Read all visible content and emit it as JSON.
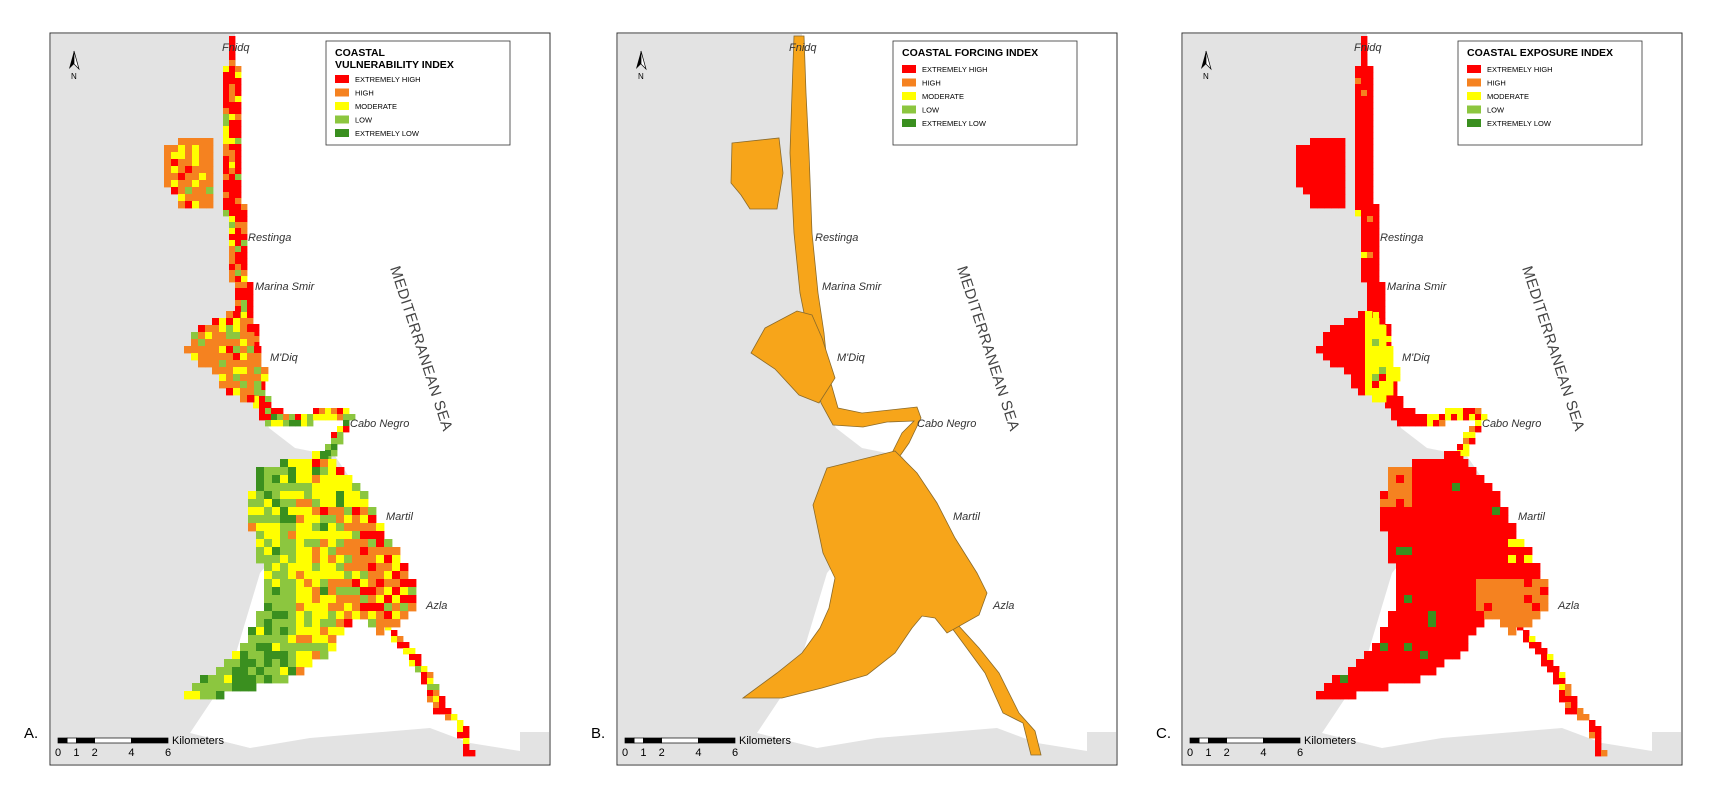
{
  "colors": {
    "extremely_high": "#ff0000",
    "high": "#f58220",
    "moderate": "#ffff00",
    "low": "#8cc63f",
    "extremely_low": "#3a8f1f",
    "forcing": "#f7a51a",
    "land": "#e3e3e3",
    "water": "#ffffff"
  },
  "panels": [
    {
      "label": "A.",
      "legend": {
        "title_lines": [
          "COASTAL",
          "VULNERABILITY  INDEX"
        ],
        "items": [
          "EXTREMELY HIGH",
          "HIGH",
          "MODERATE",
          "LOW",
          "EXTREMELY LOW"
        ]
      }
    },
    {
      "label": "B.",
      "legend": {
        "title_lines": [
          "COASTAL FORCING  INDEX"
        ],
        "items": [
          "EXTREMELY HIGH",
          "HIGH",
          "MODERATE",
          "LOW",
          "EXTREMELY LOW"
        ]
      }
    },
    {
      "label": "C.",
      "legend": {
        "title_lines": [
          "COASTAL EXPOSURE INDEX"
        ],
        "items": [
          "EXTREMELY HIGH",
          "HIGH",
          "MODERATE",
          "LOW",
          "EXTREMELY LOW"
        ]
      }
    }
  ],
  "place_names": [
    "Fnidq",
    "Restinga",
    "Marina Smir",
    "M'Diq",
    "Cabo Negro",
    "Martil",
    "Azla"
  ],
  "sea_label": "MEDITERRANEAN SEA",
  "north_label": "N",
  "scale_bar": {
    "ticks": [
      "0",
      "1",
      "2",
      "4",
      "6"
    ],
    "unit": "Kilometers"
  }
}
